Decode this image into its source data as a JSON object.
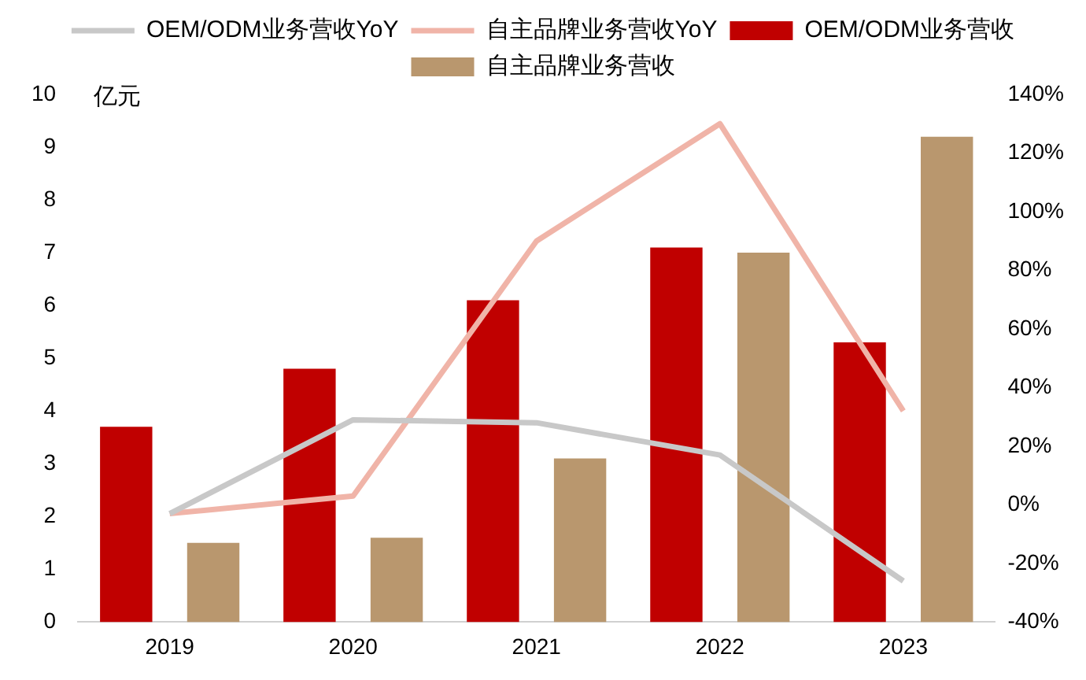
{
  "chart_data": {
    "type": "bar",
    "ylabel": "亿元",
    "categories": [
      "2019",
      "2020",
      "2021",
      "2022",
      "2023"
    ],
    "series": [
      {
        "name": "OEM/ODM业务营收",
        "color": "#c00000",
        "values": [
          3.7,
          4.8,
          6.1,
          7.1,
          5.3
        ]
      },
      {
        "name": "自主品牌业务营收",
        "color": "#b9976e",
        "values": [
          1.5,
          1.6,
          3.1,
          7.0,
          9.2
        ]
      },
      {
        "name": "OEM/ODM业务营收YoY",
        "type": "line",
        "axis": "y2",
        "color": "#c8c8c8",
        "values": [
          -3,
          29,
          28,
          17,
          -26
        ]
      },
      {
        "name": "自主品牌业务营收YoY",
        "type": "line",
        "axis": "y2",
        "color": "#f0b4a8",
        "values": [
          -3,
          3,
          90,
          130,
          32
        ]
      }
    ],
    "ylim": [
      0,
      10
    ],
    "yticks": [
      0,
      1,
      2,
      3,
      4,
      5,
      6,
      7,
      8,
      9,
      10
    ],
    "y2lim": [
      -40,
      140
    ],
    "y2ticks": [
      {
        "value": -40,
        "label": "-40%"
      },
      {
        "value": -20,
        "label": "-20%"
      },
      {
        "value": 0,
        "label": "0%"
      },
      {
        "value": 20,
        "label": "20%"
      },
      {
        "value": 40,
        "label": "40%"
      },
      {
        "value": 60,
        "label": "60%"
      },
      {
        "value": 80,
        "label": "80%"
      },
      {
        "value": 100,
        "label": "100%"
      },
      {
        "value": 120,
        "label": "120%"
      },
      {
        "value": 140,
        "label": "140%"
      }
    ],
    "grid": false,
    "legend": "top",
    "marker": "none"
  }
}
